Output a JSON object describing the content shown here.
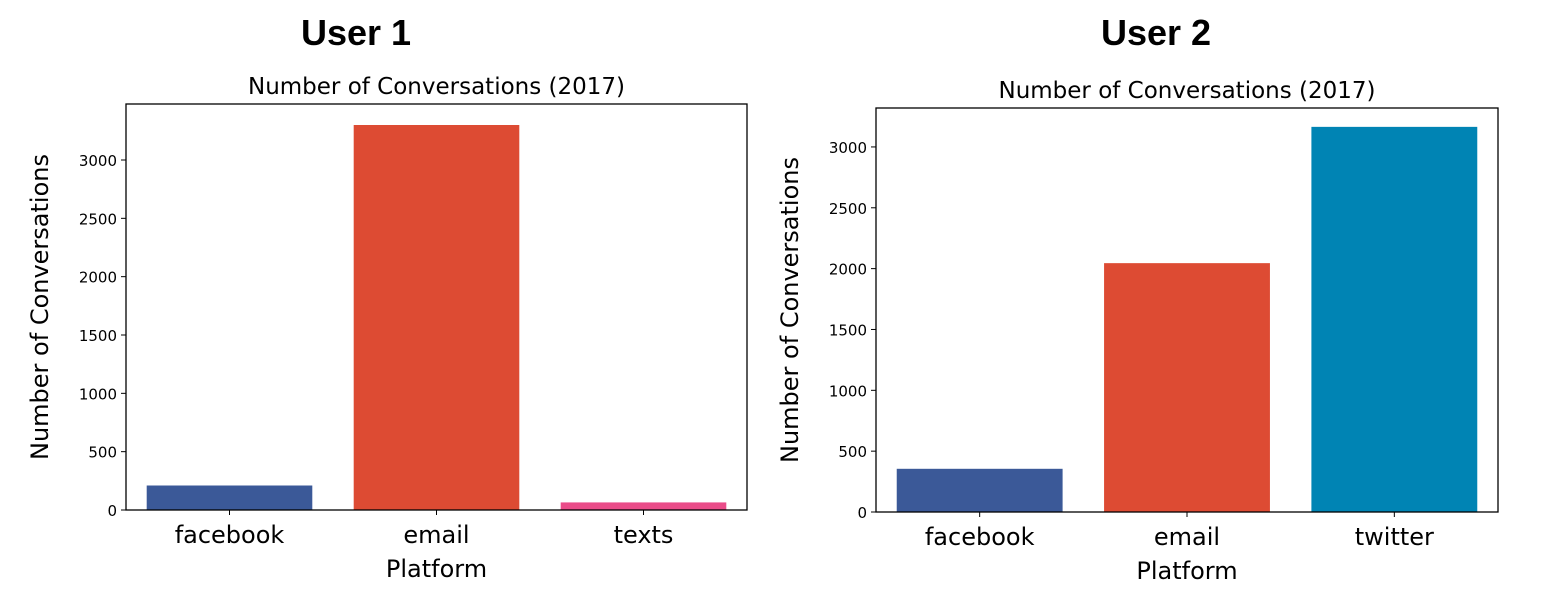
{
  "panels": [
    {
      "label": "User 1"
    },
    {
      "label": "User 2"
    }
  ],
  "chart_data": [
    {
      "type": "bar",
      "title": "Number of Conversations (2017)",
      "xlabel": "Platform",
      "ylabel": "Number of Conversations",
      "categories": [
        "facebook",
        "email",
        "texts"
      ],
      "values": [
        210,
        3300,
        65
      ],
      "colors": [
        "#3b5998",
        "#dd4b33",
        "#ea4c89"
      ],
      "ylim": [
        0,
        3480
      ],
      "yticks": [
        0,
        500,
        1000,
        1500,
        2000,
        2500,
        3000
      ],
      "grid": false
    },
    {
      "type": "bar",
      "title": "Number of Conversations (2017)",
      "xlabel": "Platform",
      "ylabel": "Number of Conversations",
      "categories": [
        "facebook",
        "email",
        "twitter"
      ],
      "values": [
        355,
        2045,
        3165
      ],
      "colors": [
        "#3b5998",
        "#dd4b33",
        "#0084b4"
      ],
      "ylim": [
        0,
        3320
      ],
      "yticks": [
        0,
        500,
        1000,
        1500,
        2000,
        2500,
        3000
      ],
      "grid": false
    }
  ]
}
